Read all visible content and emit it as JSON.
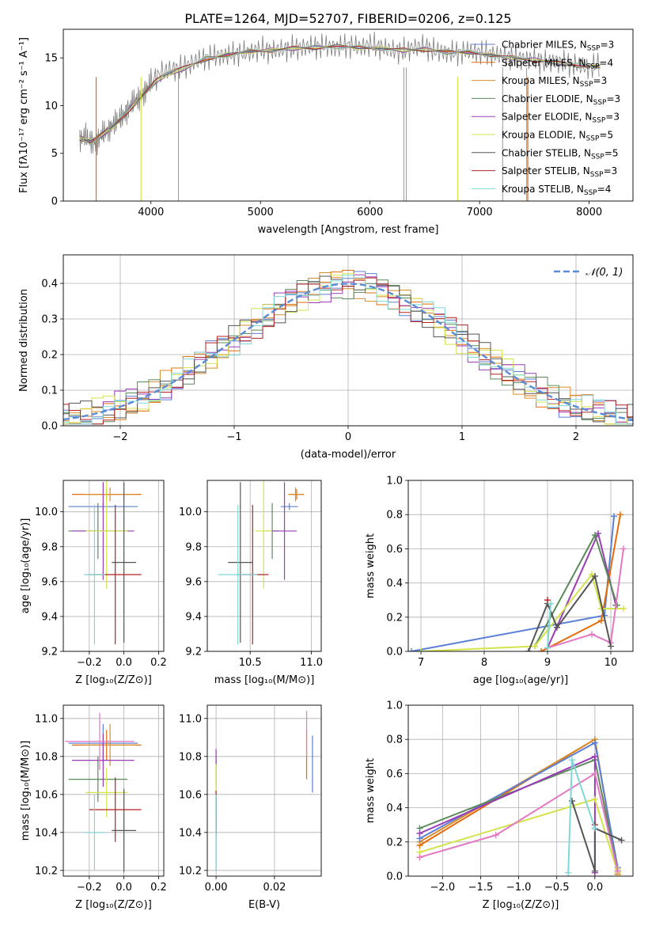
{
  "figure_title": "PLATE=1264, MJD=52707, FIBERID=0206, z=0.125",
  "models": [
    {
      "name": "Chabrier MILES, N",
      "sub": "SSP",
      "suffix": "=3",
      "color": "#5b7fd6"
    },
    {
      "name": "Salpeter MILES, N",
      "sub": "SSP",
      "suffix": "=4",
      "color": "#e36c0a"
    },
    {
      "name": "Kroupa MILES, N",
      "sub": "SSP",
      "suffix": "=3",
      "color": "#d98c2b"
    },
    {
      "name": "Chabrier ELODIE, N",
      "sub": "SSP",
      "suffix": "=3",
      "color": "#5a8a5a"
    },
    {
      "name": "Salpeter ELODIE, N",
      "sub": "SSP",
      "suffix": "=3",
      "color": "#9b3cb7"
    },
    {
      "name": "Kroupa ELODIE, N",
      "sub": "SSP",
      "suffix": "=5",
      "color": "#d4e34a"
    },
    {
      "name": "Chabrier STELIB, N",
      "sub": "SSP",
      "suffix": "=5",
      "color": "#555555"
    },
    {
      "name": "Salpeter STELIB, N",
      "sub": "SSP",
      "suffix": "=3",
      "color": "#b22222"
    },
    {
      "name": "Kroupa STELIB, N",
      "sub": "SSP",
      "suffix": "=4",
      "color": "#7fd8d8"
    }
  ],
  "extra_color_pink": "#e377c2",
  "chart_data": [
    {
      "id": "spectrum",
      "type": "line",
      "xlabel": "wavelength [Angstrom, rest frame]",
      "ylabel": "Flux [fλ10⁻¹⁷ erg cm⁻² s⁻¹ A⁻¹]",
      "xlim": [
        3200,
        8400
      ],
      "ylim": [
        0,
        18
      ],
      "xticks": [
        4000,
        5000,
        6000,
        7000,
        8000
      ],
      "yticks": [
        0,
        5,
        10,
        15
      ],
      "data_color": "#7f7f7f",
      "data_x": [
        3350,
        3400,
        3450,
        3500,
        3550,
        3600,
        3650,
        3700,
        3750,
        3800,
        3850,
        3900,
        3950,
        4000,
        4100,
        4200,
        4300,
        4400,
        4500,
        4600,
        4700,
        4800,
        4900,
        5000,
        5100,
        5200,
        5300,
        5400,
        5500,
        5600,
        5700,
        5800,
        5900,
        6000,
        6100,
        6200,
        6300,
        6400,
        6500,
        6600,
        6700,
        6800,
        6900,
        7000,
        7100,
        7200,
        7300,
        7400,
        7500,
        7600,
        7700,
        7800,
        7900,
        8000,
        8100
      ],
      "data_y": [
        6.5,
        6.8,
        6.3,
        6.0,
        7.0,
        7.3,
        8.0,
        8.5,
        9.0,
        9.8,
        10.5,
        10.8,
        11.5,
        12.5,
        13.5,
        13.8,
        14.0,
        14.6,
        15.0,
        15.2,
        15.3,
        15.5,
        15.6,
        15.9,
        15.7,
        15.9,
        16.0,
        16.1,
        16.2,
        16.2,
        16.1,
        16.3,
        16.1,
        16.4,
        16.1,
        15.8,
        15.7,
        16.1,
        16.2,
        15.7,
        15.6,
        15.5,
        15.7,
        15.6,
        15.4,
        15.2,
        15.1,
        14.9,
        14.8,
        14.5,
        14.6,
        14.4,
        14.2,
        14.0,
        14.3
      ],
      "model_x": [
        3350,
        3450,
        3550,
        3650,
        3750,
        3850,
        3950,
        4050,
        4150,
        4300,
        4500,
        4700,
        4900,
        5100,
        5300,
        5500,
        5700,
        5900,
        6100,
        6300,
        6500,
        6700,
        6900,
        7100,
        7300,
        7500,
        7700,
        7900,
        8100
      ],
      "model_y": [
        6.6,
        6.2,
        6.9,
        7.8,
        8.9,
        10.2,
        11.4,
        12.6,
        13.3,
        13.9,
        14.9,
        15.3,
        15.7,
        15.8,
        16.0,
        16.1,
        16.2,
        16.1,
        16.0,
        15.8,
        15.9,
        15.6,
        15.6,
        15.3,
        15.0,
        14.8,
        14.5,
        14.2,
        14.1
      ],
      "drops": [
        {
          "x": 3500,
          "model": 1
        },
        {
          "x": 3910,
          "model": 5
        },
        {
          "x": 6800,
          "model": 5
        },
        {
          "x": 7440,
          "model": 1
        }
      ],
      "spikes": [
        4250,
        6310,
        6330,
        7210,
        7430
      ]
    },
    {
      "id": "residuals",
      "type": "histogram",
      "xlabel": "(data-model)/error",
      "ylabel": "Normed distribution",
      "xlim": [
        -2.5,
        2.5
      ],
      "ylim": [
        0,
        0.48
      ],
      "xticks": [
        -2,
        -1,
        0,
        1,
        2
      ],
      "yticks": [
        0.0,
        0.1,
        0.2,
        0.3,
        0.4
      ],
      "bin_width": 0.1,
      "normal_label": "𝒩(0, 1)",
      "normal_color": "#5b8bd6"
    },
    {
      "id": "age_vs_Z",
      "type": "errorbar",
      "xlabel": "Z [log₁₀(Z/Z⊙)]",
      "ylabel": "age  [log₁₀(age/yr)]",
      "xlim": [
        -0.35,
        0.23
      ],
      "ylim": [
        9.2,
        10.18
      ],
      "xticks": [
        -0.2,
        0.0,
        0.2
      ],
      "xticklabels": [
        "−0.2",
        "0.0",
        "0.2"
      ],
      "yticks": [
        9.2,
        9.4,
        9.6,
        9.8,
        10.0
      ],
      "points": [
        {
          "m": 0,
          "x": -0.12,
          "xe": 0.2,
          "y": 10.03,
          "ye": 0.02
        },
        {
          "m": 1,
          "x": -0.1,
          "xe": 0.2,
          "y": 10.1,
          "ye": 0.03
        },
        {
          "m": 2,
          "x": -0.08,
          "xe": 0.15,
          "y": 10.1,
          "ye": 0.04
        },
        {
          "m": 3,
          "x": -0.15,
          "xe": 0.17,
          "y": 9.89,
          "ye": 0.16
        },
        {
          "m": 4,
          "x": -0.12,
          "xe": 0.18,
          "y": 9.89,
          "ye": 0.28
        },
        {
          "m": 5,
          "x": -0.1,
          "xe": 0.12,
          "y": 9.89,
          "ye": 0.33
        },
        {
          "m": 6,
          "x": 0.0,
          "xe": 0.07,
          "y": 9.71,
          "ye": 0.46
        },
        {
          "m": 7,
          "x": -0.05,
          "xe": 0.15,
          "y": 9.64,
          "ye": 0.4
        },
        {
          "m": 8,
          "x": -0.17,
          "xe": 0.06,
          "y": 9.64,
          "ye": 0.4
        }
      ]
    },
    {
      "id": "age_vs_mass",
      "type": "errorbar",
      "xlabel": "mass [log₁₀(M/M⊙)]",
      "ylabel": "",
      "xlim": [
        10.15,
        11.08
      ],
      "ylim": [
        9.2,
        10.18
      ],
      "xticks": [
        10.5,
        11.0
      ],
      "xticklabels": [
        "10.5",
        "11.0"
      ],
      "yticks": [
        9.2,
        9.4,
        9.6,
        9.8,
        10.0
      ],
      "points": [
        {
          "m": 0,
          "x": 10.82,
          "xe": 0.07,
          "y": 10.03,
          "ye": 0.02
        },
        {
          "m": 1,
          "x": 10.88,
          "xe": 0.06,
          "y": 10.1,
          "ye": 0.03
        },
        {
          "m": 2,
          "x": 10.87,
          "xe": 0.06,
          "y": 10.1,
          "ye": 0.04
        },
        {
          "m": 3,
          "x": 10.68,
          "xe": 0.05,
          "y": 9.89,
          "ye": 0.16
        },
        {
          "m": 4,
          "x": 10.78,
          "xe": 0.1,
          "y": 9.89,
          "ye": 0.28
        },
        {
          "m": 5,
          "x": 10.61,
          "xe": 0.07,
          "y": 9.89,
          "ye": 0.33
        },
        {
          "m": 6,
          "x": 10.42,
          "xe": 0.1,
          "y": 9.71,
          "ye": 0.46
        },
        {
          "m": 7,
          "x": 10.52,
          "xe": 0.13,
          "y": 9.64,
          "ye": 0.4
        },
        {
          "m": 8,
          "x": 10.4,
          "xe": 0.16,
          "y": 9.64,
          "ye": 0.4
        }
      ]
    },
    {
      "id": "weight_vs_age",
      "type": "line",
      "xlabel": "age  [log₁₀(age/yr)]",
      "ylabel": "mass weight",
      "xlim": [
        6.8,
        10.35
      ],
      "ylim": [
        0,
        1.0
      ],
      "xticks": [
        7,
        8,
        9,
        10
      ],
      "yticks": [
        0.0,
        0.2,
        0.4,
        0.6,
        0.8,
        1.0
      ],
      "series": [
        {
          "m": 0,
          "x": [
            6.85,
            9.9,
            10.05
          ],
          "y": [
            0.0,
            0.21,
            0.79
          ]
        },
        {
          "m": 1,
          "x": [
            8.9,
            9.85,
            10.15
          ],
          "y": [
            0.0,
            0.18,
            0.8
          ]
        },
        {
          "m": 4,
          "x": [
            9.0,
            9.8,
            10.08
          ],
          "y": [
            0.02,
            0.69,
            0.27
          ]
        },
        {
          "m": 3,
          "x": [
            8.8,
            9.75,
            10.1
          ],
          "y": [
            0.03,
            0.68,
            0.27
          ]
        },
        {
          "m": 5,
          "x": [
            7.0,
            8.8,
            9.7,
            9.85,
            10.2
          ],
          "y": [
            0.0,
            0.03,
            0.45,
            0.25,
            0.25
          ]
        },
        {
          "p": 1,
          "x": [
            9.0,
            9.7,
            10.0,
            10.2
          ],
          "y": [
            0.02,
            0.1,
            0.05,
            0.6
          ]
        },
        {
          "m": 6,
          "x": [
            8.7,
            9.0,
            9.15,
            9.75,
            10.0
          ],
          "y": [
            0.0,
            0.28,
            0.14,
            0.44,
            0.03
          ]
        },
        {
          "m": 7,
          "x": [
            9.0
          ],
          "y": [
            0.3
          ]
        },
        {
          "m": 8,
          "x": [
            9.0,
            9.05
          ],
          "y": [
            0.02,
            0.28
          ]
        }
      ]
    },
    {
      "id": "mass_vs_Z",
      "type": "errorbar",
      "xlabel": "Z [log₁₀(Z/Z⊙)]",
      "ylabel": "mass [log₁₀(M/M⊙)]",
      "xlim": [
        -0.35,
        0.23
      ],
      "ylim": [
        10.17,
        11.07
      ],
      "xticks": [
        -0.2,
        0.0,
        0.2
      ],
      "xticklabels": [
        "−0.2",
        "0.0",
        "0.2"
      ],
      "yticks": [
        10.2,
        10.4,
        10.6,
        10.8,
        11.0
      ],
      "points": [
        {
          "m": 0,
          "x": -0.12,
          "xe": 0.2,
          "y": 10.87,
          "ye": 0.1
        },
        {
          "m": 1,
          "x": -0.1,
          "xe": 0.2,
          "y": 10.86,
          "ye": 0.08
        },
        {
          "m": 2,
          "x": -0.08,
          "xe": 0.15,
          "y": 10.86,
          "ye": 0.11
        },
        {
          "m": 3,
          "x": -0.15,
          "xe": 0.17,
          "y": 10.68,
          "ye": 0.12
        },
        {
          "m": 4,
          "x": -0.12,
          "xe": 0.18,
          "y": 10.78,
          "ye": 0.14
        },
        {
          "m": 5,
          "x": -0.1,
          "xe": 0.12,
          "y": 10.61,
          "ye": 0.13
        },
        {
          "m": 6,
          "x": 0.0,
          "xe": 0.07,
          "y": 10.41,
          "ye": 0.22
        },
        {
          "m": 7,
          "x": -0.05,
          "xe": 0.15,
          "y": 10.52,
          "ye": 0.17
        },
        {
          "m": 8,
          "x": -0.17,
          "xe": 0.06,
          "y": 10.4,
          "ye": 0.2
        },
        {
          "p": 1,
          "x": -0.14,
          "xe": 0.2,
          "y": 10.88,
          "ye": 0.15
        }
      ]
    },
    {
      "id": "mass_vs_ebv",
      "type": "errorbar",
      "xlabel": "E(B-V)",
      "ylabel": "",
      "xlim": [
        -0.003,
        0.036
      ],
      "ylim": [
        10.17,
        11.07
      ],
      "xticks": [
        0.0,
        0.02
      ],
      "xticklabels": [
        "0.00",
        "0.02"
      ],
      "yticks": [
        10.2,
        10.4,
        10.6,
        10.8,
        11.0
      ],
      "points": [
        {
          "m": 0,
          "x": 0.033,
          "xe": 0,
          "y": 10.76,
          "ye": 0.15
        },
        {
          "m": 1,
          "x": 0.031,
          "xe": 0,
          "y": 10.81,
          "ye": 0.13
        },
        {
          "p": 1,
          "x": 0.031,
          "xe": 0,
          "y": 10.92,
          "ye": 0.12
        },
        {
          "m": 3,
          "x": 0.0,
          "xe": 0,
          "y": 10.6,
          "ye": 0.2
        },
        {
          "m": 4,
          "x": 0.0,
          "xe": 0,
          "y": 10.75,
          "ye": 0.09
        },
        {
          "m": 5,
          "x": 0.0,
          "xe": 0,
          "y": 10.62,
          "ye": 0.14
        },
        {
          "m": 6,
          "x": 0.0,
          "xe": 0,
          "y": 10.4,
          "ye": 0.2
        },
        {
          "m": 7,
          "x": 0.0,
          "xe": 0,
          "y": 10.5,
          "ye": 0.12
        },
        {
          "m": 8,
          "x": 0.0,
          "xe": 0,
          "y": 10.4,
          "ye": 0.2
        }
      ]
    },
    {
      "id": "weight_vs_Z",
      "type": "line",
      "xlabel": "Z [log₁₀(Z/Z⊙)]",
      "ylabel": "mass weight",
      "xlim": [
        -2.45,
        0.5
      ],
      "ylim": [
        0,
        1.0
      ],
      "xticks": [
        -2.0,
        -1.5,
        -1.0,
        -0.5,
        0.0
      ],
      "xticklabels": [
        "−2.0",
        "−1.5",
        "−1.0",
        "−0.5",
        "0.0"
      ],
      "yticks": [
        0.0,
        0.2,
        0.4,
        0.6,
        0.8,
        1.0
      ],
      "series": [
        {
          "m": 1,
          "x": [
            -2.3,
            0.0,
            0.3
          ],
          "y": [
            0.18,
            0.8,
            0.01
          ]
        },
        {
          "m": 2,
          "x": [
            -2.3,
            0.0,
            0.3
          ],
          "y": [
            0.2,
            0.8,
            0.02
          ]
        },
        {
          "m": 0,
          "x": [
            -2.3,
            0.0,
            0.3
          ],
          "y": [
            0.22,
            0.78,
            0.05
          ]
        },
        {
          "m": 3,
          "x": [
            -2.3,
            0.0,
            0.3
          ],
          "y": [
            0.28,
            0.68,
            0.03
          ]
        },
        {
          "m": 4,
          "x": [
            -2.3,
            0.0,
            0.0
          ],
          "y": [
            0.25,
            0.7,
            0.02
          ]
        },
        {
          "m": 5,
          "x": [
            -2.3,
            0.0,
            0.3,
            0.3
          ],
          "y": [
            0.14,
            0.45,
            0.02,
            0.04
          ]
        },
        {
          "p": 1,
          "x": [
            -2.3,
            -1.3,
            0.0,
            0.3
          ],
          "y": [
            0.11,
            0.24,
            0.6,
            0.03
          ]
        },
        {
          "m": 6,
          "x": [
            -0.3,
            0.0,
            0.0,
            0.35
          ],
          "y": [
            0.44,
            0.03,
            0.28,
            0.21
          ]
        },
        {
          "m": 7,
          "x": [
            0.0
          ],
          "y": [
            0.3
          ]
        },
        {
          "m": 8,
          "x": [
            -0.35,
            -0.3,
            0.0
          ],
          "y": [
            0.02,
            0.68,
            0.28
          ]
        }
      ]
    }
  ]
}
